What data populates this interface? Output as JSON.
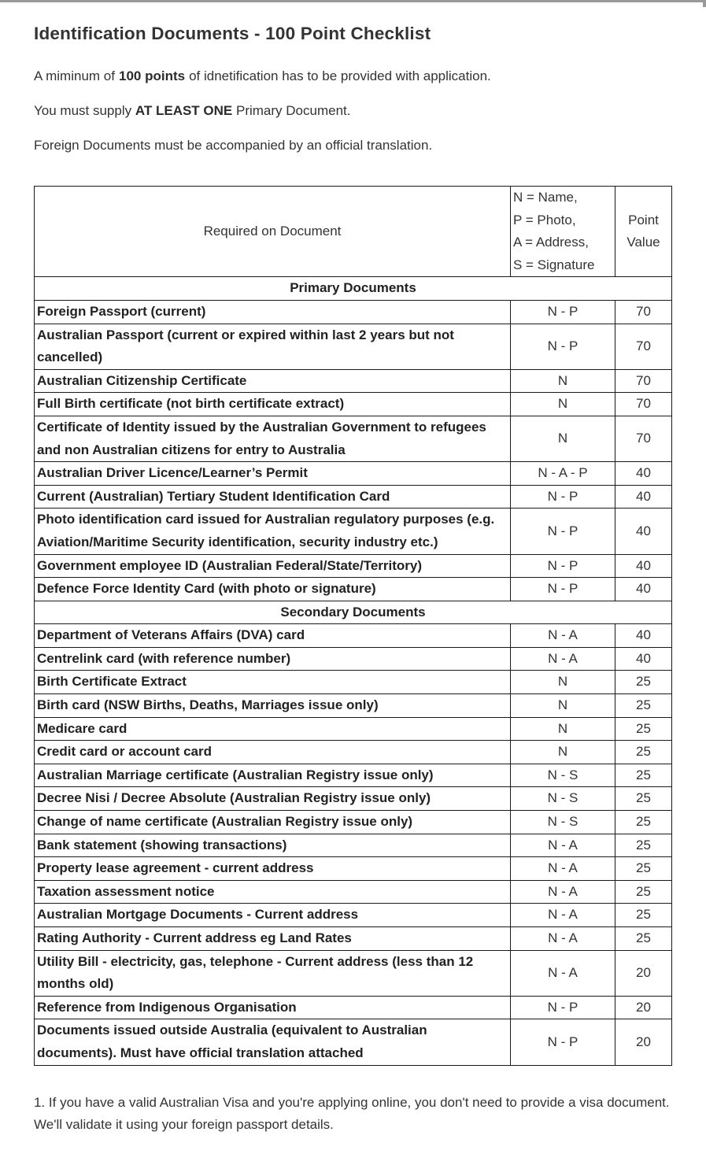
{
  "page": {
    "title": "Identification Documents - 100 Point Checklist",
    "intro_1": {
      "pre": "A miminum of",
      "bold": "100 points",
      "post": "of idnetification has to be provided with application."
    },
    "intro_2": {
      "pre": "You must supply ",
      "bold": "AT LEAST ONE",
      "post": " Primary Document."
    },
    "intro_3": "Foreign Documents must be accompanied by an official translation.",
    "footnote": "1. If you have a valid Australian Visa and you're applying online, you don't need to provide a visa document. We'll validate it using your foreign passport details."
  },
  "colors": {
    "text": "#333333",
    "table_border": "#1a1a1a",
    "top_line": "#9a9a9a",
    "background": "#ffffff"
  },
  "table": {
    "header": {
      "required": "Required on Document",
      "legend": "N = Name,\nP = Photo,\nA = Address,\nS = Signature",
      "points": "Point Value"
    },
    "sections": [
      {
        "label": "Primary Documents",
        "rows": [
          {
            "doc": "Foreign Passport (current)",
            "required": "N - P",
            "points": "70"
          },
          {
            "doc": "Australian Passport (current or expired within last 2 years but not cancelled)",
            "required": "N - P",
            "points": "70"
          },
          {
            "doc": "Australian Citizenship Certificate",
            "required": "N",
            "points": "70"
          },
          {
            "doc": "Full Birth certificate (not birth certificate extract)",
            "required": "N",
            "points": "70"
          },
          {
            "doc": "Certificate of Identity issued by the Australian Government to refugees and non Australian citizens for entry to Australia",
            "required": "N",
            "points": "70"
          },
          {
            "doc": "Australian Driver Licence/Learner’s Permit",
            "required": "N - A - P",
            "points": "40"
          },
          {
            "doc": "Current (Australian) Tertiary Student Identification Card",
            "required": "N - P",
            "points": "40"
          },
          {
            "doc": "Photo identification card issued for Australian regulatory purposes (e.g. Aviation/Maritime Security identification, security industry etc.)",
            "required": "N - P",
            "points": "40"
          },
          {
            "doc": "Government employee ID (Australian Federal/State/Territory)",
            "required": "N - P",
            "points": "40"
          },
          {
            "doc": "Defence Force Identity Card (with photo or signature)",
            "required": "N - P",
            "points": "40"
          }
        ]
      },
      {
        "label": "Secondary Documents",
        "rows": [
          {
            "doc": "Department of Veterans Affairs (DVA) card",
            "required": "N - A",
            "points": "40"
          },
          {
            "doc": "Centrelink card (with reference number)",
            "required": "N - A",
            "points": "40"
          },
          {
            "doc": "Birth Certificate Extract",
            "required": "N",
            "points": "25"
          },
          {
            "doc": "Birth card (NSW Births, Deaths, Marriages issue only)",
            "required": "N",
            "points": "25"
          },
          {
            "doc": "Medicare card",
            "required": "N",
            "points": "25"
          },
          {
            "doc": "Credit card or account card",
            "required": "N",
            "points": "25"
          },
          {
            "doc": "Australian Marriage certificate (Australian Registry issue only)",
            "required": "N - S",
            "points": "25"
          },
          {
            "doc": "Decree Nisi / Decree Absolute (Australian Registry issue only)",
            "required": "N - S",
            "points": "25"
          },
          {
            "doc": "Change of name certificate (Australian Registry issue only)",
            "required": "N - S",
            "points": "25"
          },
          {
            "doc": "Bank statement (showing transactions)",
            "required": "N - A",
            "points": "25"
          },
          {
            "doc": "Property lease agreement - current address",
            "required": "N - A",
            "points": "25"
          },
          {
            "doc": "Taxation assessment notice",
            "required": "N - A",
            "points": "25"
          },
          {
            "doc": "Australian Mortgage Documents - Current address",
            "required": "N - A",
            "points": "25"
          },
          {
            "doc": "Rating Authority - Current address eg Land Rates",
            "required": "N - A",
            "points": "25"
          },
          {
            "doc": "Utility Bill - electricity, gas, telephone - Current address (less than 12 months old)",
            "required": "N - A",
            "points": "20"
          },
          {
            "doc": "Reference from Indigenous Organisation",
            "required": "N - P",
            "points": "20"
          },
          {
            "doc": "Documents issued outside Australia (equivalent to Australian documents). Must have official translation attached",
            "required": "N - P",
            "points": "20"
          }
        ]
      }
    ]
  }
}
